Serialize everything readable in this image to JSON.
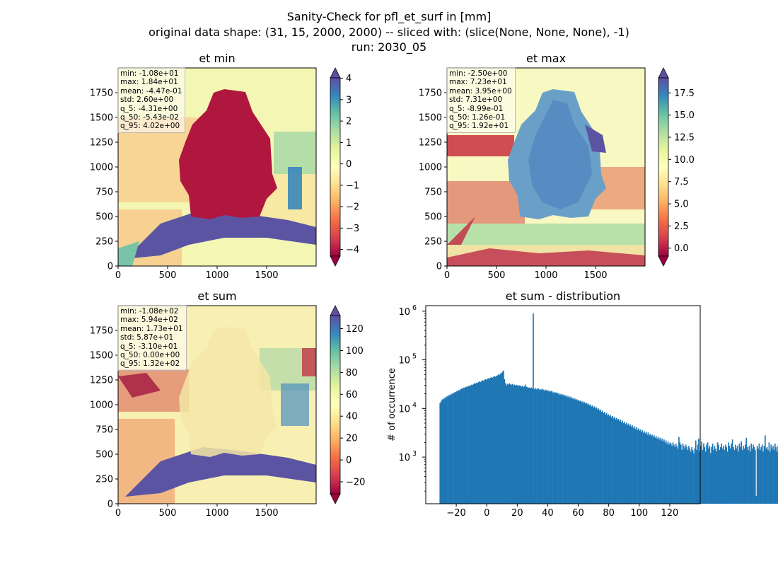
{
  "figure": {
    "title_lines": [
      "Sanity-Check for pfl_et_surf in [mm]",
      "original data shape: (31, 15, 2000, 2000) -- sliced with: (slice(None, None, None), -1)",
      "run: 2030_05"
    ]
  },
  "chart_data": [
    {
      "type": "heatmap",
      "title": "et min",
      "xlim": [
        0,
        2000
      ],
      "ylim": [
        0,
        2000
      ],
      "xticks": [
        0,
        500,
        1000,
        1500
      ],
      "yticks": [
        0,
        250,
        500,
        750,
        1000,
        1250,
        1500,
        1750
      ],
      "colormap": "Spectral",
      "colorbar": {
        "range": [
          -4.31,
          4.02
        ],
        "ticks": [
          -4,
          -3,
          -2,
          -1,
          0,
          1,
          2,
          3,
          4
        ],
        "tick_labels": [
          "−4",
          "−3",
          "−2",
          "−1",
          "0",
          "1",
          "2",
          "3",
          "4"
        ],
        "extend": "both"
      },
      "stats": {
        "min": "-1.08e+01",
        "max": "1.84e+01",
        "mean": "-4.47e-01",
        "std": "2.60e+00",
        "q_5": "-4.31e+00",
        "q_50": "-5.43e-02",
        "q_95": "4.02e+00"
      }
    },
    {
      "type": "heatmap",
      "title": "et max",
      "xlim": [
        0,
        2000
      ],
      "ylim": [
        0,
        2000
      ],
      "xticks": [
        0,
        500,
        1000,
        1500
      ],
      "yticks": [
        0,
        250,
        500,
        750,
        1000,
        1250,
        1500,
        1750
      ],
      "colormap": "Spectral",
      "colorbar": {
        "range": [
          -0.899,
          19.2
        ],
        "ticks": [
          0,
          2.5,
          5,
          7.5,
          10,
          12.5,
          15,
          17.5
        ],
        "tick_labels": [
          "0.0",
          "2.5",
          "5.0",
          "7.5",
          "10.0",
          "12.5",
          "15.0",
          "17.5"
        ],
        "extend": "both"
      },
      "stats": {
        "min": "-2.50e+00",
        "max": "7.23e+01",
        "mean": "3.95e+00",
        "std": "7.31e+00",
        "q_5": "-8.99e-01",
        "q_50": "1.26e-01",
        "q_95": "1.92e+01"
      }
    },
    {
      "type": "heatmap",
      "title": "et sum",
      "xlim": [
        0,
        2000
      ],
      "ylim": [
        0,
        2000
      ],
      "xticks": [
        0,
        500,
        1000,
        1500
      ],
      "yticks": [
        0,
        250,
        500,
        750,
        1000,
        1250,
        1500,
        1750
      ],
      "colormap": "Spectral",
      "colorbar": {
        "range": [
          -31.0,
          132
        ],
        "ticks": [
          -20,
          0,
          20,
          40,
          60,
          80,
          100,
          120
        ],
        "tick_labels": [
          "−20",
          "0",
          "20",
          "40",
          "60",
          "80",
          "100",
          "120"
        ],
        "extend": "both"
      },
      "stats": {
        "min": "-1.08e+02",
        "max": "5.94e+02",
        "mean": "1.73e+01",
        "std": "5.87e+01",
        "q_5": "-3.10e+01",
        "q_50": "0.00e+00",
        "q_95": "1.32e+02"
      }
    },
    {
      "type": "bar",
      "title": "et sum - distribution",
      "ylabel": "# of occurrence",
      "yscale": "log",
      "xlim": [
        -40,
        140
      ],
      "ylim": [
        110,
        1300000
      ],
      "xticks": [
        -20,
        0,
        20,
        40,
        60,
        80,
        100,
        120
      ],
      "xtick_labels": [
        "−20",
        "0",
        "20",
        "40",
        "60",
        "80",
        "100",
        "120"
      ],
      "yticks": [
        1000,
        10000,
        100000,
        1000000
      ],
      "bin_start": -31.0,
      "bin_width": 0.65,
      "color": "#1f77b4",
      "values": [
        13000,
        14000,
        15000,
        16000,
        15500,
        17000,
        16500,
        18000,
        17500,
        19000,
        18500,
        20000,
        19500,
        21000,
        20500,
        22000,
        21500,
        23000,
        22500,
        24000,
        23500,
        25000,
        26000,
        25500,
        27000,
        26500,
        28000,
        27500,
        29000,
        28500,
        30000,
        29500,
        31000,
        30500,
        32000,
        33000,
        32500,
        34000,
        33500,
        35000,
        36000,
        35000,
        37000,
        38000,
        37000,
        39000,
        40000,
        39000,
        41000,
        42000,
        41000,
        43000,
        44000,
        43000,
        45000,
        46000,
        45000,
        47000,
        48000,
        50000,
        49000,
        52000,
        54000,
        57000,
        60000,
        40000,
        33000,
        30000,
        32000,
        31000,
        33000,
        31500,
        30500,
        32000,
        30000,
        31000,
        29500,
        30500,
        30000,
        29000,
        30000,
        29500,
        28000,
        29500,
        27500,
        28500,
        31000,
        28000,
        27500,
        26500,
        27000,
        26000,
        27000,
        26000,
        900000,
        25000,
        26500,
        24500,
        25500,
        26000,
        24500,
        25000,
        24000,
        25500,
        24500,
        23000,
        24500,
        23500,
        24000,
        22500,
        23500,
        22000,
        23000,
        22500,
        21000,
        22000,
        20500,
        21500,
        21000,
        20000,
        20500,
        19000,
        20000,
        18500,
        19500,
        18000,
        19000,
        17500,
        18500,
        17000,
        18000,
        16500,
        17500,
        16000,
        16500,
        15500,
        16000,
        15000,
        15500,
        14500,
        15000,
        14000,
        14500,
        13500,
        14000,
        13000,
        13500,
        12500,
        13000,
        12000,
        12500,
        11500,
        12000,
        11000,
        11500,
        10500,
        11000,
        10000,
        10500,
        9500,
        10000,
        9000,
        9500,
        8500,
        9000,
        8000,
        8500,
        7500,
        8000,
        7200,
        7600,
        6900,
        7300,
        6600,
        7000,
        6300,
        6700,
        6000,
        6400,
        5800,
        6100,
        5500,
        5900,
        5200,
        5600,
        5000,
        5300,
        4800,
        5100,
        4600,
        4900,
        4400,
        4700,
        4200,
        4500,
        4000,
        4300,
        3800,
        4100,
        3600,
        3900,
        3500,
        3700,
        3300,
        3600,
        3200,
        3400,
        3100,
        3300,
        2900,
        3200,
        2800,
        3000,
        2700,
        2900,
        2600,
        2800,
        2500,
        2700,
        2400,
        2600,
        2300,
        2500,
        2200,
        2400,
        2100,
        2300,
        2000,
        2200,
        1900,
        2100,
        1800,
        2000,
        1900,
        1700,
        2000,
        1800,
        1600,
        1900,
        1700,
        1500,
        2600,
        2000,
        1800,
        1400,
        1900,
        1700,
        1500,
        1800,
        1600,
        1400,
        1700,
        1500,
        1300,
        1600,
        1400,
        1200,
        1500,
        2200,
        1400,
        1800,
        2400,
        1300,
        1700,
        2100,
        1400,
        1900,
        1600,
        1300,
        1800,
        2000,
        1500,
        1700,
        1200,
        1600,
        1900,
        1400,
        1700,
        1500,
        1300,
        2000,
        1800,
        1400,
        1600,
        1900,
        1500,
        1700,
        1400,
        1800,
        1600,
        1300,
        2000,
        1700,
        1500,
        1900,
        2300,
        1600,
        1400,
        1800,
        1500,
        1700,
        1300,
        1900,
        1600,
        2100,
        1400,
        1700,
        1500,
        1800,
        2500,
        1600,
        1400,
        1700,
        1300,
        1900,
        1500,
        1800,
        1600,
        1400,
        160,
        1700,
        1500,
        1900,
        1400,
        1600,
        1800,
        1300,
        1700,
        2800,
        1500,
        1600,
        1400,
        2000,
        1300,
        1800,
        1500,
        1700,
        1400,
        1900,
        1600,
        1300,
        1700,
        1500
      ]
    }
  ]
}
